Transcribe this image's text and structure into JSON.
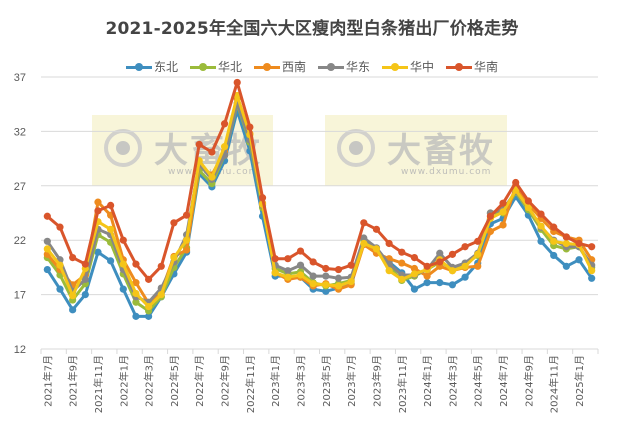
{
  "chart_data": {
    "type": "line",
    "title": "2021-2025年全国六大区瘦肉型白条猪出厂价格走势",
    "xlabel": "",
    "ylabel": "",
    "ylim": [
      12,
      37
    ],
    "yticks": [
      12,
      17,
      22,
      27,
      32,
      37
    ],
    "grid": true,
    "legend_position": "top",
    "x_tick_labels": [
      "2021年7月",
      "2021年9月",
      "2021年11月",
      "2022年1月",
      "2022年3月",
      "2022年5月",
      "2022年7月",
      "2022年9月",
      "2022年11月",
      "2023年1月",
      "2023年3月",
      "2023年5月",
      "2023年7月",
      "2023年9月",
      "2023年11月",
      "2024年1月",
      "2024年3月",
      "2024年5月",
      "2024年7月",
      "2024年9月",
      "2024年11月",
      "2025年1月"
    ],
    "x": [
      "2021-07",
      "2021-08",
      "2021-09",
      "2021-10",
      "2021-11",
      "2021-12",
      "2022-01",
      "2022-02",
      "2022-03",
      "2022-04",
      "2022-05",
      "2022-06",
      "2022-07",
      "2022-08",
      "2022-09",
      "2022-10",
      "2022-11",
      "2022-12",
      "2023-01",
      "2023-02",
      "2023-03",
      "2023-04",
      "2023-05",
      "2023-06",
      "2023-07",
      "2023-08",
      "2023-09",
      "2023-10",
      "2023-11",
      "2023-12",
      "2024-01",
      "2024-02",
      "2024-03",
      "2024-04",
      "2024-05",
      "2024-06",
      "2024-07",
      "2024-08",
      "2024-09",
      "2024-10",
      "2024-11",
      "2024-12",
      "2025-01",
      "2025-02"
    ],
    "series": [
      {
        "name": "东北",
        "color": "#3E8EBF",
        "values": [
          19.3,
          17.5,
          15.6,
          17.0,
          20.9,
          20.1,
          17.5,
          15.0,
          15.0,
          16.8,
          18.9,
          20.9,
          28.1,
          26.9,
          29.3,
          33.9,
          30.2,
          24.2,
          18.7,
          18.7,
          18.6,
          17.5,
          17.3,
          17.6,
          18.0,
          22.0,
          21.0,
          20.0,
          19.0,
          17.5,
          18.1,
          18.1,
          17.9,
          18.6,
          19.9,
          23.5,
          24.0,
          26.0,
          24.3,
          21.9,
          20.6,
          19.6,
          20.2,
          18.5
        ]
      },
      {
        "name": "华北",
        "color": "#9BBB3B",
        "values": [
          20.4,
          18.8,
          16.5,
          18.0,
          22.5,
          21.8,
          18.9,
          16.3,
          15.5,
          16.8,
          19.5,
          21.3,
          28.4,
          27.2,
          29.8,
          34.5,
          31.0,
          25.0,
          19.4,
          18.9,
          19.1,
          18.1,
          17.8,
          18.0,
          18.3,
          22.0,
          21.2,
          19.6,
          18.3,
          18.7,
          19.3,
          20.0,
          19.4,
          19.8,
          20.6,
          24.5,
          24.5,
          26.4,
          24.8,
          23.0,
          21.5,
          21.2,
          21.4,
          19.5
        ]
      },
      {
        "name": "西南",
        "color": "#EE8B1E",
        "values": [
          20.7,
          19.3,
          17.9,
          18.8,
          25.5,
          24.3,
          20.2,
          18.1,
          16.2,
          17.3,
          20.5,
          21.1,
          28.9,
          28.0,
          30.2,
          35.0,
          31.8,
          25.4,
          19.0,
          18.4,
          18.6,
          17.8,
          18.0,
          17.5,
          17.9,
          21.6,
          20.8,
          20.3,
          19.9,
          19.4,
          18.7,
          19.6,
          19.2,
          19.5,
          19.6,
          22.8,
          23.4,
          27.0,
          25.3,
          24.0,
          22.8,
          22.3,
          22.0,
          20.2
        ]
      },
      {
        "name": "华东",
        "color": "#878787",
        "values": [
          21.9,
          20.2,
          17.3,
          18.4,
          23.0,
          22.5,
          19.3,
          16.8,
          16.3,
          17.6,
          20.0,
          22.5,
          29.0,
          27.6,
          29.8,
          34.6,
          31.2,
          25.2,
          19.7,
          19.2,
          19.7,
          18.7,
          18.7,
          18.5,
          18.6,
          22.2,
          21.3,
          19.8,
          18.8,
          18.8,
          19.3,
          20.8,
          19.5,
          19.9,
          20.8,
          24.5,
          24.8,
          26.5,
          25.0,
          23.2,
          22.0,
          21.4,
          21.4,
          19.7
        ]
      },
      {
        "name": "华中",
        "color": "#F5C518",
        "values": [
          21.2,
          19.7,
          16.9,
          19.4,
          23.7,
          23.0,
          19.8,
          17.1,
          15.9,
          17.0,
          20.4,
          22.0,
          29.3,
          27.8,
          30.6,
          35.3,
          31.7,
          25.3,
          19.0,
          18.6,
          18.8,
          18.0,
          17.9,
          17.8,
          18.2,
          21.7,
          21.2,
          19.2,
          18.4,
          18.9,
          19.3,
          20.2,
          19.2,
          19.6,
          20.7,
          24.0,
          24.6,
          26.6,
          25.0,
          23.3,
          21.9,
          21.7,
          21.6,
          19.2
        ]
      },
      {
        "name": "华南",
        "color": "#D9552B",
        "values": [
          24.2,
          23.2,
          20.4,
          19.8,
          24.7,
          25.2,
          22.0,
          19.8,
          18.4,
          19.6,
          23.6,
          24.3,
          30.8,
          30.1,
          32.7,
          36.5,
          32.4,
          25.9,
          20.3,
          20.3,
          21.0,
          20.0,
          19.4,
          19.3,
          19.7,
          23.6,
          23.0,
          21.7,
          20.9,
          20.4,
          19.6,
          20.0,
          20.7,
          21.4,
          21.9,
          24.2,
          25.4,
          27.3,
          25.6,
          24.4,
          23.2,
          22.3,
          21.7,
          21.4
        ]
      }
    ]
  },
  "watermark": {
    "brand": "大畜牧",
    "url": "www.dxumu.com"
  }
}
